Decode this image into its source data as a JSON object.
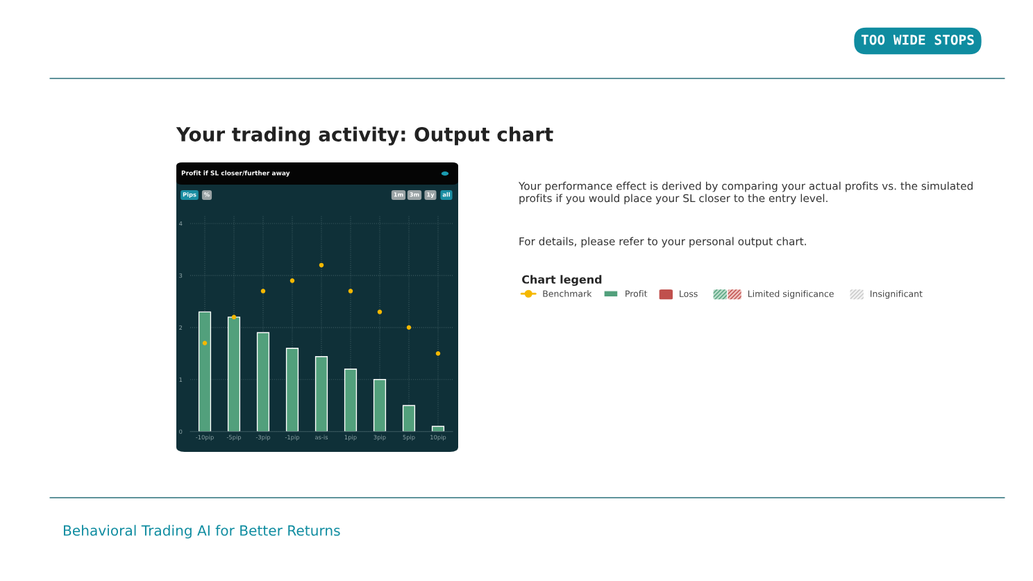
{
  "chart_data": {
    "type": "bar",
    "title": "Your trading activity: Output chart",
    "subtitle": "Profit if SL closer/further away",
    "categories": [
      "-10pip",
      "-5pip",
      "-3pip",
      "-1pip",
      "as-is",
      "1pip",
      "3pip",
      "5pip",
      "10pip"
    ],
    "series": [
      {
        "name": "Benchmark",
        "type": "scatter",
        "color": "#f5b800",
        "marker": "circle",
        "values": [
          1.7,
          2.2,
          2.7,
          2.9,
          3.2,
          2.7,
          2.3,
          2.0,
          1.5
        ]
      },
      {
        "name": "Profit",
        "color": "#52a07c",
        "values": [
          2.3,
          2.2,
          1.9,
          1.6,
          1.44,
          1.2,
          1.0,
          0.5,
          0.1
        ]
      }
    ],
    "ylim": [
      0,
      4.15
    ],
    "yticks": [
      0,
      1,
      2,
      3,
      4
    ],
    "grid": true,
    "legend": "right",
    "legend_title": "Chart legend",
    "annotations": [
      "TOO WIDE STOPS",
      "Pips",
      "%",
      "1m",
      "3m",
      "1y",
      "all",
      "Your performance effect is derived by comparing your actual profits vs. the simulated profits if you would place your SL closer to the entry level.",
      "For details, please refer to your personal output chart.",
      "Behavioral Trading AI for Better Returns",
      "Loss",
      "Limited significance",
      "Insignificant"
    ]
  }
}
